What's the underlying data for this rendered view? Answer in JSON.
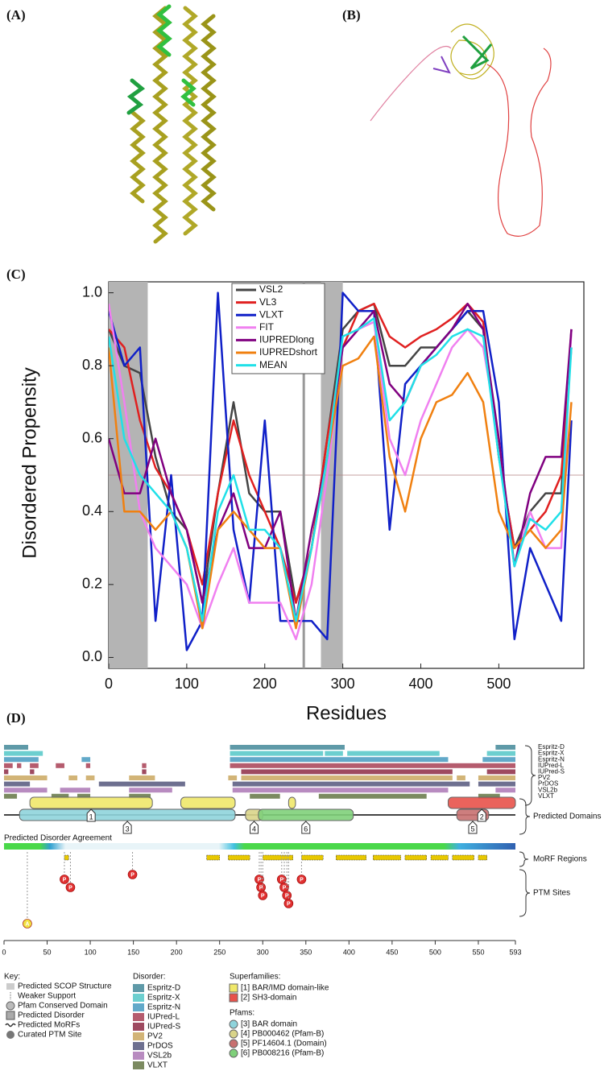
{
  "panel_labels": [
    "(A)",
    "(B)",
    "(C)",
    "(D)"
  ],
  "chart_data": {
    "type": "line",
    "xlabel": "Residues",
    "ylabel": "Disordered Propensity",
    "x": [
      0,
      20,
      40,
      60,
      80,
      100,
      120,
      140,
      160,
      180,
      200,
      220,
      240,
      260,
      280,
      300,
      320,
      340,
      360,
      380,
      400,
      420,
      440,
      460,
      480,
      500,
      520,
      540,
      560,
      580,
      593
    ],
    "series": [
      {
        "name": "VSL2",
        "color": "#444444",
        "values": [
          0.9,
          0.8,
          0.78,
          0.55,
          0.4,
          0.35,
          0.15,
          0.45,
          0.7,
          0.45,
          0.4,
          0.4,
          0.15,
          0.3,
          0.6,
          0.9,
          0.95,
          0.97,
          0.8,
          0.8,
          0.85,
          0.85,
          0.9,
          0.95,
          0.9,
          0.55,
          0.3,
          0.4,
          0.45,
          0.45,
          0.9
        ]
      },
      {
        "name": "VL3",
        "color": "#e02020",
        "values": [
          0.9,
          0.85,
          0.65,
          0.52,
          0.45,
          0.35,
          0.2,
          0.45,
          0.65,
          0.5,
          0.4,
          0.3,
          0.15,
          0.3,
          0.6,
          0.85,
          0.95,
          0.97,
          0.88,
          0.85,
          0.88,
          0.9,
          0.93,
          0.97,
          0.92,
          0.55,
          0.3,
          0.35,
          0.4,
          0.5,
          0.85
        ]
      },
      {
        "name": "VLXT",
        "color": "#1020c8",
        "values": [
          0.95,
          0.8,
          0.85,
          0.1,
          0.5,
          0.02,
          0.1,
          1.0,
          0.35,
          0.15,
          0.65,
          0.1,
          0.1,
          0.1,
          0.05,
          1.0,
          0.95,
          0.95,
          0.35,
          0.75,
          0.8,
          0.85,
          0.9,
          0.95,
          0.95,
          0.7,
          0.05,
          0.3,
          0.2,
          0.1,
          0.65
        ]
      },
      {
        "name": "FIT",
        "color": "#f080f0",
        "values": [
          0.97,
          0.7,
          0.4,
          0.3,
          0.25,
          0.2,
          0.08,
          0.2,
          0.3,
          0.15,
          0.15,
          0.15,
          0.05,
          0.2,
          0.5,
          0.85,
          0.9,
          0.92,
          0.6,
          0.5,
          0.65,
          0.75,
          0.85,
          0.9,
          0.85,
          0.6,
          0.25,
          0.4,
          0.3,
          0.3,
          0.9
        ]
      },
      {
        "name": "IUPREDlong",
        "color": "#800080",
        "values": [
          0.6,
          0.45,
          0.45,
          0.6,
          0.45,
          0.35,
          0.15,
          0.35,
          0.45,
          0.3,
          0.3,
          0.4,
          0.1,
          0.35,
          0.55,
          0.85,
          0.9,
          0.95,
          0.75,
          0.7,
          0.8,
          0.85,
          0.9,
          0.97,
          0.9,
          0.6,
          0.25,
          0.45,
          0.55,
          0.55,
          0.9
        ]
      },
      {
        "name": "IUPREDshort",
        "color": "#f08010",
        "values": [
          0.85,
          0.4,
          0.4,
          0.35,
          0.4,
          0.3,
          0.08,
          0.35,
          0.4,
          0.35,
          0.3,
          0.3,
          0.08,
          0.3,
          0.55,
          0.8,
          0.82,
          0.88,
          0.55,
          0.4,
          0.6,
          0.7,
          0.72,
          0.78,
          0.7,
          0.4,
          0.3,
          0.35,
          0.3,
          0.35,
          0.7
        ]
      },
      {
        "name": "MEAN",
        "color": "#20e0e8",
        "values": [
          0.88,
          0.6,
          0.5,
          0.45,
          0.4,
          0.3,
          0.1,
          0.4,
          0.5,
          0.35,
          0.35,
          0.3,
          0.1,
          0.3,
          0.55,
          0.88,
          0.9,
          0.93,
          0.65,
          0.7,
          0.8,
          0.83,
          0.88,
          0.9,
          0.88,
          0.55,
          0.25,
          0.38,
          0.35,
          0.4,
          0.85
        ]
      }
    ],
    "xlim": [
      0,
      609
    ],
    "ylim": [
      -0.03,
      1.03
    ],
    "xticks": [
      0,
      100,
      200,
      300,
      400,
      500
    ],
    "yticks": [
      {
        "value": 0,
        "label": "0.0"
      },
      0.2,
      0.4,
      0.6,
      0.8,
      {
        "value": 1,
        "label": "1.0"
      }
    ],
    "shaded_regions": [
      [
        0,
        50
      ],
      [
        272,
        300
      ]
    ],
    "threshold": 0.5,
    "vline": 250
  },
  "panel_d": {
    "xlim": [
      0,
      593
    ],
    "xticks": [
      0,
      50,
      100,
      150,
      200,
      250,
      300,
      350,
      400,
      450,
      500,
      550,
      593
    ],
    "tracks": [
      {
        "name": "Espritz-D",
        "color": "#5f9aa8",
        "segments": [
          [
            0,
            28
          ],
          [
            262,
            395
          ],
          [
            570,
            593
          ]
        ]
      },
      {
        "name": "Espritz-X",
        "color": "#6ccfcf",
        "segments": [
          [
            0,
            45
          ],
          [
            262,
            370
          ],
          [
            372,
            393
          ],
          [
            398,
            505
          ],
          [
            560,
            593
          ]
        ]
      },
      {
        "name": "Espritz-N",
        "color": "#62a9c9",
        "segments": [
          [
            0,
            40
          ],
          [
            90,
            100
          ],
          [
            262,
            515
          ],
          [
            555,
            593
          ]
        ]
      },
      {
        "name": "IUPred-L",
        "color": "#b55c6e",
        "segments": [
          [
            0,
            10
          ],
          [
            15,
            20
          ],
          [
            30,
            40
          ],
          [
            60,
            70
          ],
          [
            95,
            100
          ],
          [
            160,
            165
          ],
          [
            262,
            593
          ]
        ]
      },
      {
        "name": "IUPred-S",
        "color": "#9e4a60",
        "segments": [
          [
            0,
            5
          ],
          [
            30,
            35
          ],
          [
            160,
            165
          ],
          [
            275,
            520
          ],
          [
            560,
            593
          ]
        ]
      },
      {
        "name": "PV2",
        "color": "#d2b477",
        "segments": [
          [
            0,
            50
          ],
          [
            75,
            85
          ],
          [
            95,
            105
          ],
          [
            145,
            175
          ],
          [
            260,
            270
          ],
          [
            275,
            520
          ],
          [
            525,
            535
          ],
          [
            550,
            593
          ]
        ]
      },
      {
        "name": "PrDOS",
        "color": "#6e7090",
        "segments": [
          [
            0,
            30
          ],
          [
            110,
            210
          ],
          [
            265,
            540
          ],
          [
            550,
            593
          ]
        ]
      },
      {
        "name": "VSL2b",
        "color": "#b88bc0",
        "segments": [
          [
            0,
            50
          ],
          [
            65,
            100
          ],
          [
            145,
            195
          ],
          [
            265,
            515
          ],
          [
            570,
            593
          ]
        ]
      },
      {
        "name": "VLXT",
        "color": "#7b8a60",
        "segments": [
          [
            0,
            15
          ],
          [
            55,
            75
          ],
          [
            85,
            100
          ],
          [
            145,
            170
          ],
          [
            285,
            320
          ],
          [
            365,
            490
          ],
          [
            550,
            575
          ]
        ]
      }
    ],
    "domains_label": "Predicted Domains",
    "superfamilies": [
      {
        "marker": "1",
        "color": "#f0e86a",
        "segments": [
          [
            30,
            172
          ],
          [
            205,
            268
          ],
          [
            330,
            338
          ]
        ]
      },
      {
        "marker": "2",
        "color": "#e8524a",
        "segments": [
          [
            515,
            593
          ]
        ]
      }
    ],
    "pfams": [
      {
        "marker": "3",
        "color": "#8fd4dc",
        "segments": [
          [
            18,
            268
          ]
        ]
      },
      {
        "marker": "4",
        "color": "#d9d48a",
        "segments": [
          [
            280,
            300
          ]
        ]
      },
      {
        "marker": "5",
        "color": "#c87070",
        "segments": [
          [
            525,
            562
          ]
        ]
      },
      {
        "marker": "6",
        "color": "#7fd07a",
        "segments": [
          [
            295,
            405
          ]
        ]
      }
    ],
    "agreement_label": "Predicted Disorder Agreement",
    "morf_label": "MoRF Regions",
    "morfs": [
      [
        70,
        75
      ],
      [
        235,
        250
      ],
      [
        260,
        285
      ],
      [
        300,
        335
      ],
      [
        345,
        370
      ],
      [
        385,
        420
      ],
      [
        428,
        460
      ],
      [
        465,
        490
      ],
      [
        495,
        515
      ],
      [
        520,
        545
      ],
      [
        550,
        560
      ]
    ],
    "ptm_label": "PTM Sites",
    "ptm_sites": [
      {
        "pos": 27,
        "label": "A"
      },
      {
        "pos": 70,
        "label": "P"
      },
      {
        "pos": 77,
        "label": "P"
      },
      {
        "pos": 149,
        "label": "P"
      },
      {
        "pos": 296,
        "label": "P"
      },
      {
        "pos": 298,
        "label": "P"
      },
      {
        "pos": 300,
        "label": "P"
      },
      {
        "pos": 322,
        "label": "P"
      },
      {
        "pos": 325,
        "label": "P"
      },
      {
        "pos": 328,
        "label": "P"
      },
      {
        "pos": 330,
        "label": "P"
      },
      {
        "pos": 345,
        "label": "P"
      }
    ],
    "key": {
      "title": "Key:",
      "items": [
        "Predicted SCOP Structure",
        "Weaker Support",
        "Pfam Conserved Domain",
        "Predicted Disorder",
        "Predicted MoRFs",
        "Curated PTM Site"
      ]
    },
    "disorder_title": "Disorder:",
    "superfamilies_title": "Superfamilies:",
    "superfamily_names": [
      "[1] BAR/IMD domain-like",
      "[2] SH3-domain"
    ],
    "pfams_title": "Pfams:",
    "pfam_names": [
      "[3] BAR domain",
      "[4] PB000462 (Pfam-B)",
      "[5] PF14604.1 (Domain)",
      "[6] PB008216 (Pfam-B)"
    ]
  }
}
